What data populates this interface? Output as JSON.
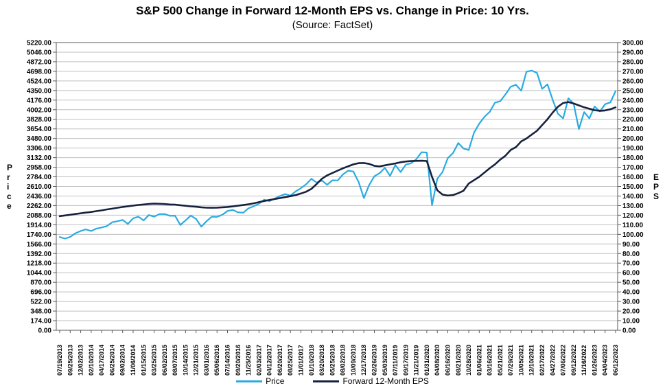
{
  "chart": {
    "title": "S&P 500 Change in Forward 12-Month EPS vs. Change in Price: 10 Yrs.",
    "subtitle": "(Source: FactSet)",
    "left_axis_label": "Price",
    "right_axis_label": "EPS",
    "legend": [
      {
        "label": "Price",
        "color": "#29ABE2"
      },
      {
        "label": "Forward 12-Month EPS",
        "color": "#16213E"
      }
    ]
  },
  "chart_data": {
    "type": "line",
    "title": "S&P 500 Change in Forward 12-Month EPS vs. Change in Price: 10 Yrs.",
    "subtitle": "(Source: FactSet)",
    "grid": true,
    "legend_position": "bottom",
    "points_per_label": 2,
    "left_axis": {
      "label": "Price",
      "min": 0,
      "max": 5220,
      "step": 174,
      "decimals": 2,
      "ticks": [
        "5220.00",
        "5046.00",
        "4872.00",
        "4698.00",
        "4524.00",
        "4350.00",
        "4176.00",
        "4002.00",
        "3828.00",
        "3654.00",
        "3480.00",
        "3306.00",
        "3132.00",
        "2958.00",
        "2784.00",
        "2610.00",
        "2436.00",
        "2262.00",
        "2088.00",
        "1914.00",
        "1740.00",
        "1566.00",
        "1392.00",
        "1218.00",
        "1044.00",
        "870.00",
        "696.00",
        "522.00",
        "348.00",
        "174.00",
        "0.00"
      ]
    },
    "right_axis": {
      "label": "EPS",
      "min": 0,
      "max": 300,
      "step": 10,
      "decimals": 2,
      "ticks": [
        "300.00",
        "290.00",
        "280.00",
        "270.00",
        "260.00",
        "250.00",
        "240.00",
        "230.00",
        "220.00",
        "210.00",
        "200.00",
        "190.00",
        "180.00",
        "170.00",
        "160.00",
        "150.00",
        "140.00",
        "130.00",
        "120.00",
        "110.00",
        "100.00",
        "90.00",
        "80.00",
        "70.00",
        "60.00",
        "50.00",
        "40.00",
        "30.00",
        "20.00",
        "10.00",
        "0.00"
      ]
    },
    "x_labels": [
      "07/19/2013",
      "09/25/2013",
      "12/02/2013",
      "02/10/2014",
      "04/17/2014",
      "06/25/2014",
      "09/02/2014",
      "11/06/2014",
      "01/15/2015",
      "03/25/2015",
      "06/02/2015",
      "08/07/2015",
      "10/14/2015",
      "12/21/2015",
      "03/01/2016",
      "05/06/2016",
      "07/14/2016",
      "09/20/2016",
      "11/25/2016",
      "02/03/2017",
      "04/12/2017",
      "06/20/2017",
      "08/25/2017",
      "11/01/2017",
      "01/10/2018",
      "03/20/2018",
      "05/25/2018",
      "08/02/2018",
      "10/09/2018",
      "12/17/2018",
      "02/26/2019",
      "05/03/2019",
      "07/11/2019",
      "09/17/2019",
      "11/21/2019",
      "01/31/2020",
      "04/08/2020",
      "06/16/2020",
      "08/21/2020",
      "10/28/2020",
      "01/06/2021",
      "03/16/2021",
      "05/21/2021",
      "07/29/2021",
      "10/05/2021",
      "12/10/2021",
      "02/17/2022",
      "04/27/2022",
      "07/06/2022",
      "09/12/2022",
      "11/16/2022",
      "01/26/2023",
      "04/04/2023",
      "06/12/2023"
    ],
    "series": [
      {
        "name": "Price",
        "axis": "left",
        "color": "#29ABE2",
        "width": 2.2,
        "values": [
          1692,
          1663,
          1693,
          1760,
          1801,
          1830,
          1800,
          1845,
          1865,
          1890,
          1960,
          1978,
          2002,
          1930,
          2031,
          2060,
          1993,
          2090,
          2061,
          2108,
          2109,
          2077,
          2078,
          1910,
          1994,
          2080,
          2021,
          1880,
          1978,
          2060,
          2057,
          2096,
          2164,
          2184,
          2140,
          2133,
          2213,
          2250,
          2297,
          2370,
          2344,
          2390,
          2437,
          2470,
          2443,
          2520,
          2579,
          2650,
          2748,
          2680,
          2717,
          2640,
          2721,
          2718,
          2827,
          2896,
          2880,
          2690,
          2400,
          2633,
          2794,
          2850,
          2946,
          2800,
          2999,
          2870,
          3006,
          3030,
          3103,
          3230,
          3226,
          2270,
          2750,
          2870,
          3125,
          3215,
          3397,
          3298,
          3271,
          3585,
          3748,
          3875,
          3963,
          4130,
          4156,
          4280,
          4419,
          4455,
          4346,
          4690,
          4712,
          4670,
          4380,
          4463,
          4184,
          3930,
          3845,
          4210,
          4110,
          3650,
          3959,
          3845,
          4060,
          3970,
          4101,
          4135,
          4339
        ]
      },
      {
        "name": "Forward 12-Month EPS",
        "axis": "right",
        "color": "#16213E",
        "width": 2.6,
        "values": [
          119,
          119.7,
          120.4,
          121.2,
          122,
          122.7,
          123.4,
          124.2,
          125,
          126,
          126.8,
          127.7,
          128.6,
          129.3,
          130,
          130.7,
          131.2,
          131.7,
          132,
          131.9,
          131.6,
          131.2,
          131,
          130.4,
          129.8,
          129.2,
          128.8,
          128.2,
          127.8,
          127.7,
          127.9,
          128.2,
          128.6,
          129.2,
          129.9,
          130.6,
          131.4,
          132.4,
          133.6,
          134.8,
          135.8,
          136.8,
          137.8,
          138.8,
          139.8,
          141,
          142.6,
          144.5,
          147.5,
          152.5,
          158,
          161.5,
          164,
          166.5,
          168.8,
          171,
          173,
          174.3,
          174.4,
          173.5,
          171.5,
          170.8,
          172,
          173,
          174,
          175.2,
          176,
          176.4,
          176.6,
          176.8,
          176.5,
          160,
          146,
          141.5,
          140.5,
          141,
          143,
          145.5,
          153,
          156.5,
          160,
          164.5,
          169,
          173,
          178,
          182,
          188,
          191,
          197,
          200,
          204,
          208,
          214,
          220,
          227,
          233,
          237,
          238,
          236.5,
          234.5,
          232.5,
          231,
          229.5,
          228.8,
          229.2,
          230.5,
          232.5
        ]
      }
    ]
  }
}
